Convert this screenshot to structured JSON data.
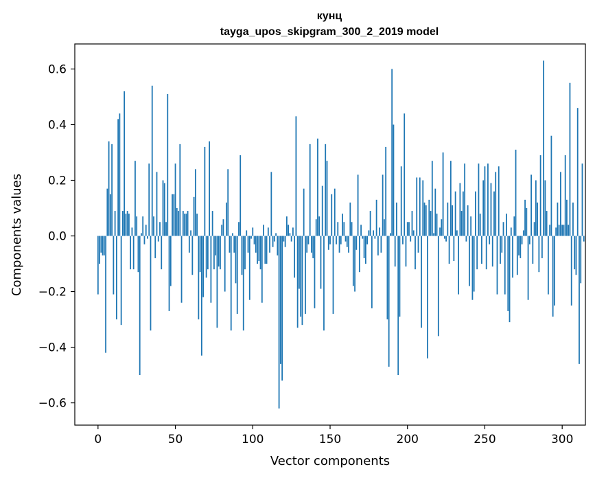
{
  "chart_data": {
    "type": "bar",
    "title": "кунц",
    "subtitle": "tayga_upos_skipgram_300_2_2019 model",
    "xlabel": "Vector components",
    "ylabel": "Components values",
    "xlim": [
      -15,
      315
    ],
    "ylim": [
      -0.68,
      0.69
    ],
    "xticks": [
      0,
      50,
      100,
      150,
      200,
      250,
      300
    ],
    "yticks": [
      -0.6,
      -0.4,
      -0.2,
      0.0,
      0.2,
      0.4,
      0.6
    ],
    "xtick_labels": [
      "0",
      "50",
      "100",
      "150",
      "200",
      "250",
      "300"
    ],
    "ytick_labels": [
      "−0.6",
      "−0.4",
      "−0.2",
      "0.0",
      "0.2",
      "0.4",
      "0.6"
    ],
    "color": "#1f77b4",
    "values": [
      -0.21,
      -0.1,
      -0.06,
      -0.07,
      -0.07,
      -0.42,
      0.17,
      0.34,
      0.15,
      0.33,
      -0.21,
      0.09,
      -0.3,
      0.42,
      0.44,
      -0.32,
      0.09,
      0.52,
      0.08,
      0.09,
      0.08,
      -0.12,
      0.03,
      -0.12,
      0.27,
      0.07,
      -0.13,
      -0.5,
      0.01,
      0.07,
      -0.03,
      0.04,
      -0.01,
      0.26,
      -0.34,
      0.54,
      0.07,
      -0.08,
      0.23,
      -0.02,
      0.05,
      -0.12,
      0.2,
      0.19,
      0.05,
      0.51,
      -0.27,
      -0.18,
      0.15,
      0.15,
      0.26,
      0.1,
      0.09,
      0.33,
      -0.24,
      0.09,
      0.08,
      0.08,
      0.09,
      -0.06,
      0.02,
      -0.14,
      0.14,
      0.24,
      0.08,
      -0.3,
      -0.13,
      -0.43,
      -0.22,
      0.32,
      -0.15,
      -0.12,
      0.34,
      -0.24,
      0.09,
      -0.12,
      -0.07,
      -0.33,
      -0.11,
      -0.12,
      0.04,
      0.06,
      -0.2,
      0.12,
      0.24,
      -0.06,
      -0.34,
      0.01,
      -0.06,
      -0.17,
      -0.28,
      0.05,
      0.29,
      -0.14,
      -0.34,
      -0.12,
      0.02,
      -0.06,
      -0.23,
      -0.01,
      0.03,
      -0.03,
      -0.06,
      -0.1,
      -0.09,
      -0.12,
      -0.24,
      0.04,
      -0.1,
      -0.1,
      0.03,
      -0.06,
      0.23,
      -0.04,
      -0.02,
      0.01,
      -0.07,
      -0.62,
      -0.46,
      -0.52,
      -0.02,
      -0.04,
      0.07,
      0.04,
      0.01,
      -0.02,
      0.03,
      -0.15,
      0.43,
      -0.33,
      -0.19,
      -0.29,
      -0.32,
      0.17,
      -0.28,
      -0.06,
      -0.03,
      0.33,
      -0.06,
      -0.08,
      -0.26,
      0.06,
      0.35,
      0.07,
      -0.19,
      0.18,
      -0.34,
      0.33,
      0.27,
      -0.05,
      -0.03,
      0.15,
      -0.28,
      0.17,
      -0.03,
      0.05,
      -0.06,
      -0.03,
      0.08,
      0.05,
      -0.02,
      -0.04,
      -0.06,
      0.12,
      0.05,
      -0.18,
      -0.2,
      -0.05,
      0.22,
      -0.13,
      0.04,
      -0.01,
      -0.08,
      -0.1,
      -0.03,
      0.02,
      0.09,
      -0.26,
      0.02,
      -0.01,
      0.13,
      -0.07,
      0.03,
      -0.06,
      0.22,
      0.06,
      0.32,
      -0.3,
      -0.47,
      0.01,
      0.6,
      0.4,
      -0.11,
      0.12,
      -0.5,
      -0.29,
      0.25,
      -0.03,
      0.44,
      -0.11,
      0.05,
      0.05,
      -0.02,
      0.09,
      0.02,
      -0.12,
      0.21,
      -0.06,
      0.21,
      -0.33,
      0.2,
      0.12,
      0.11,
      -0.44,
      0.13,
      0.09,
      0.27,
      0.01,
      0.17,
      0.08,
      -0.36,
      0.03,
      0.06,
      0.3,
      -0.01,
      -0.02,
      0.12,
      -0.1,
      0.27,
      0.11,
      -0.09,
      0.16,
      0.02,
      -0.21,
      0.19,
      0.09,
      0.16,
      0.26,
      -0.02,
      0.11,
      -0.18,
      0.07,
      -0.23,
      -0.2,
      0.16,
      -0.12,
      0.26,
      0.08,
      -0.1,
      0.2,
      0.25,
      -0.12,
      0.26,
      -0.03,
      0.19,
      -0.11,
      0.16,
      0.23,
      -0.21,
      0.25,
      -0.1,
      -0.06,
      0.05,
      -0.21,
      0.08,
      -0.27,
      -0.31,
      0.03,
      -0.15,
      0.07,
      0.31,
      -0.14,
      -0.07,
      -0.08,
      -0.03,
      0.02,
      0.13,
      0.1,
      -0.23,
      -0.03,
      0.22,
      -0.1,
      0.05,
      0.2,
      0.12,
      -0.13,
      0.29,
      -0.08,
      0.63,
      0.2,
      0.09,
      -0.21,
      0.04,
      0.36,
      -0.29,
      -0.25,
      0.03,
      0.12,
      0.04,
      0.23,
      0.04,
      0.04,
      0.29,
      0.13,
      0.04,
      0.55,
      -0.25,
      0.12,
      -0.12,
      -0.14,
      0.46,
      -0.46,
      -0.17,
      0.26,
      -0.02
    ]
  }
}
